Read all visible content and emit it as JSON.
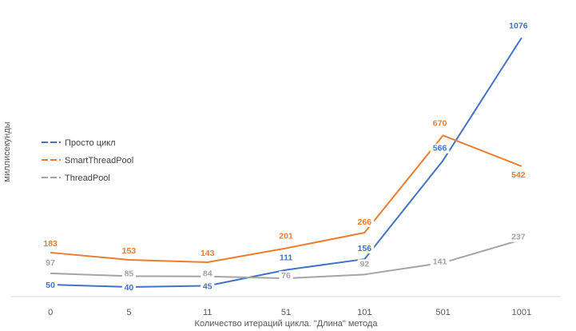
{
  "chart_data": {
    "type": "line",
    "categories": [
      "0",
      "5",
      "11",
      "51",
      "101",
      "501",
      "1001"
    ],
    "xlabel": "Количество итераций цикла. \"Длина\" метода",
    "ylabel": "миллисекунды",
    "ylim": [
      0,
      1150
    ],
    "grid": false,
    "legend_position": "left",
    "series": [
      {
        "name": "Просто цикл",
        "color": "#4472C4",
        "values": [
          50,
          40,
          45,
          111,
          156,
          566,
          1076
        ]
      },
      {
        "name": "SmartThreadPool",
        "color": "#ED7D31",
        "values": [
          183,
          153,
          143,
          201,
          266,
          670,
          542
        ]
      },
      {
        "name": "ThreadPool",
        "color": "#A5A5A5",
        "values": [
          97,
          85,
          84,
          76,
          92,
          141,
          237
        ]
      }
    ]
  }
}
